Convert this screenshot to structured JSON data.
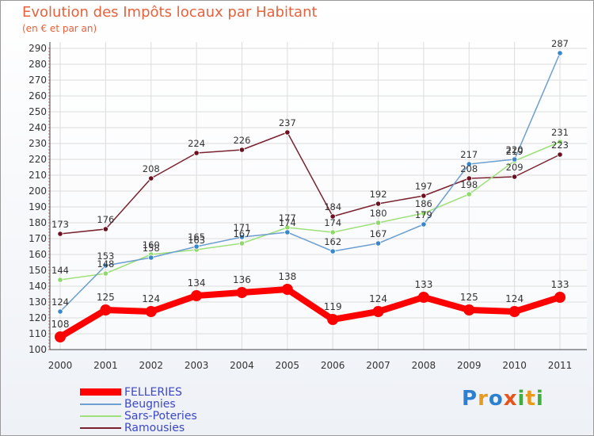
{
  "header": {
    "title": "Evolution des Impôts locaux par Habitant",
    "subtitle": "(en € et par an)"
  },
  "chart_data": {
    "type": "line",
    "title": "Evolution des Impôts locaux par Habitant",
    "subtitle": "(en € et par an)",
    "xlabel": "",
    "ylabel": "",
    "x": [
      "2000",
      "2001",
      "2002",
      "2003",
      "2004",
      "2005",
      "2006",
      "2007",
      "2008",
      "2009",
      "2010",
      "2011"
    ],
    "ylim": [
      100,
      290
    ],
    "yticks": [
      100,
      110,
      120,
      130,
      140,
      150,
      160,
      170,
      180,
      190,
      200,
      210,
      220,
      230,
      240,
      250,
      260,
      270,
      280,
      290
    ],
    "grid": true,
    "legend_position": "bottom-left",
    "series": [
      {
        "name": "FELLERIES",
        "color": "#ff0000",
        "values": [
          108,
          125,
          124,
          134,
          136,
          138,
          119,
          124,
          133,
          125,
          124,
          133
        ]
      },
      {
        "name": "Beugnies",
        "color": "#6c9ed0",
        "values": [
          124,
          153,
          158,
          165,
          171,
          174,
          162,
          167,
          179,
          217,
          220,
          287
        ]
      },
      {
        "name": "Sars-Poteries",
        "color": "#9ee07a",
        "values": [
          144,
          148,
          160,
          163,
          167,
          177,
          174,
          180,
          186,
          198,
          219,
          231
        ]
      },
      {
        "name": "Ramousies",
        "color": "#7a2230",
        "values": [
          173,
          176,
          208,
          224,
          226,
          237,
          184,
          192,
          197,
          208,
          209,
          223
        ]
      }
    ]
  },
  "logo": {
    "letters": [
      "P",
      "r",
      "o",
      "x",
      "i",
      "t",
      "i"
    ],
    "colors": [
      "#2f7fd0",
      "#e89a1e",
      "#2f7fd0",
      "#e8531c",
      "#3fae3f",
      "#e89a1e",
      "#3fae3f"
    ]
  }
}
